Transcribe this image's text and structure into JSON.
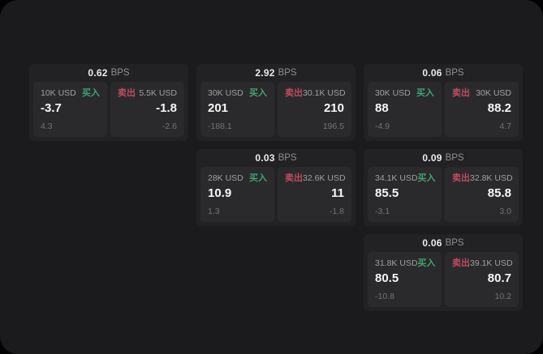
{
  "cards": [
    {
      "col": 1,
      "row": 1,
      "bps": "0.62",
      "unit": "BPS",
      "buy": {
        "amount": "10K USD",
        "label": "买入",
        "value": "-3.7",
        "delta": "4.3"
      },
      "sell": {
        "label": "卖出",
        "amount": "5.5K USD",
        "value": "-1.8",
        "delta": "-2.6"
      }
    },
    {
      "col": 2,
      "row": 1,
      "bps": "2.92",
      "unit": "BPS",
      "buy": {
        "amount": "30K USD",
        "label": "买入",
        "value": "201",
        "delta": "-188.1"
      },
      "sell": {
        "label": "卖出",
        "amount": "30.1K USD",
        "value": "210",
        "delta": "196.5"
      }
    },
    {
      "col": 3,
      "row": 1,
      "bps": "0.06",
      "unit": "BPS",
      "buy": {
        "amount": "30K USD",
        "label": "买入",
        "value": "88",
        "delta": "-4.9"
      },
      "sell": {
        "label": "卖出",
        "amount": "30K USD",
        "value": "88.2",
        "delta": "4.7"
      }
    },
    {
      "col": 2,
      "row": 2,
      "bps": "0.03",
      "unit": "BPS",
      "buy": {
        "amount": "28K USD",
        "label": "买入",
        "value": "10.9",
        "delta": "1.3"
      },
      "sell": {
        "label": "卖出",
        "amount": "32.6K USD",
        "value": "11",
        "delta": "-1.8"
      }
    },
    {
      "col": 3,
      "row": 2,
      "bps": "0.09",
      "unit": "BPS",
      "buy": {
        "amount": "34.1K USD",
        "label": "买入",
        "value": "85.5",
        "delta": "-3.1"
      },
      "sell": {
        "label": "卖出",
        "amount": "32.8K USD",
        "value": "85.8",
        "delta": "3.0"
      }
    },
    {
      "col": 3,
      "row": 3,
      "bps": "0.06",
      "unit": "BPS",
      "buy": {
        "amount": "31.8K USD",
        "label": "买入",
        "value": "80.5",
        "delta": "-10.8"
      },
      "sell": {
        "label": "卖出",
        "amount": "39.1K USD",
        "value": "80.7",
        "delta": "10.2"
      }
    }
  ],
  "colors": {
    "buy_accent": "#43a173",
    "sell_accent": "#c04b5f",
    "stage_bg": "#1b1b1d",
    "card_bg": "#222224",
    "panel_bg": "#2a2a2c"
  }
}
